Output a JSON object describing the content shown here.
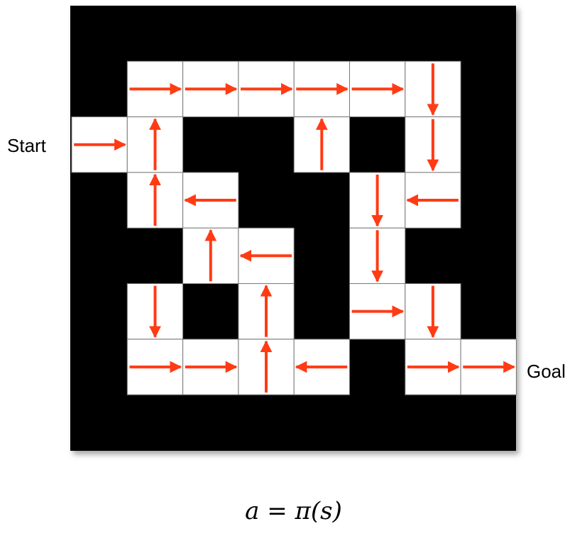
{
  "diagram": {
    "grid_rows": 8,
    "grid_cols": 8,
    "colors": {
      "wall": "#000000",
      "cell": "#ffffff",
      "grid_line": "#777777",
      "arrow": "#ff3b14"
    },
    "open_cells": [
      {
        "row": 1,
        "col": 1,
        "action": "right"
      },
      {
        "row": 1,
        "col": 2,
        "action": "right"
      },
      {
        "row": 1,
        "col": 3,
        "action": "right"
      },
      {
        "row": 1,
        "col": 4,
        "action": "right"
      },
      {
        "row": 1,
        "col": 5,
        "action": "right"
      },
      {
        "row": 1,
        "col": 6,
        "action": "down"
      },
      {
        "row": 2,
        "col": 0,
        "action": "right"
      },
      {
        "row": 2,
        "col": 1,
        "action": "up"
      },
      {
        "row": 2,
        "col": 4,
        "action": "up"
      },
      {
        "row": 2,
        "col": 6,
        "action": "down"
      },
      {
        "row": 3,
        "col": 1,
        "action": "up"
      },
      {
        "row": 3,
        "col": 2,
        "action": "left"
      },
      {
        "row": 3,
        "col": 5,
        "action": "down"
      },
      {
        "row": 3,
        "col": 6,
        "action": "left"
      },
      {
        "row": 4,
        "col": 2,
        "action": "up"
      },
      {
        "row": 4,
        "col": 3,
        "action": "left"
      },
      {
        "row": 4,
        "col": 5,
        "action": "down"
      },
      {
        "row": 5,
        "col": 1,
        "action": "down"
      },
      {
        "row": 5,
        "col": 3,
        "action": "up"
      },
      {
        "row": 5,
        "col": 5,
        "action": "right"
      },
      {
        "row": 5,
        "col": 6,
        "action": "down"
      },
      {
        "row": 6,
        "col": 1,
        "action": "right"
      },
      {
        "row": 6,
        "col": 2,
        "action": "right"
      },
      {
        "row": 6,
        "col": 3,
        "action": "up"
      },
      {
        "row": 6,
        "col": 4,
        "action": "left"
      },
      {
        "row": 6,
        "col": 6,
        "action": "right"
      },
      {
        "row": 6,
        "col": 7,
        "action": "right"
      }
    ],
    "start_label": "Start",
    "goal_label": "Goal",
    "equation": "a = π(s)"
  }
}
